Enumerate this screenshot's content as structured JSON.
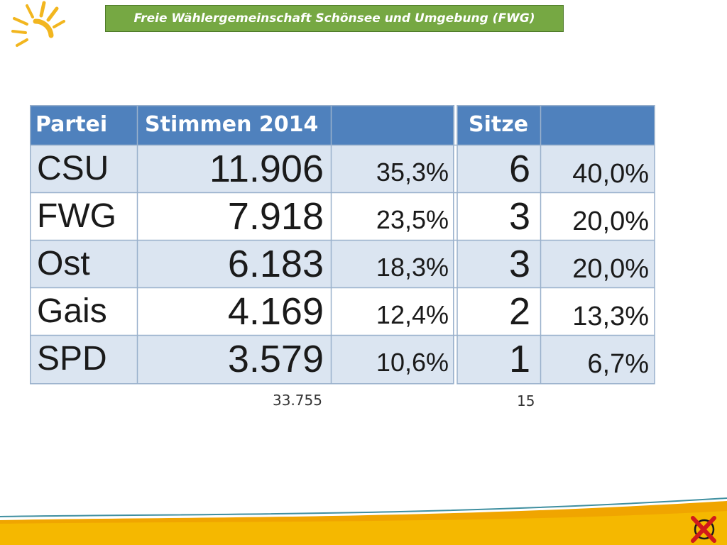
{
  "header": {
    "title": "Freie Wählergemeinschaft Schönsee und Umgebung (FWG)"
  },
  "table": {
    "columns": [
      "Partei",
      "Stimmen 2014",
      "",
      "Sitze",
      ""
    ],
    "rows": [
      {
        "party": "CSU",
        "votes": "11.906",
        "pct": "35,3%",
        "seats": "6",
        "seat_pct": "40,0%"
      },
      {
        "party": "FWG",
        "votes": "7.918",
        "pct": "23,5%",
        "seats": "3",
        "seat_pct": "20,0%"
      },
      {
        "party": "Ost",
        "votes": "6.183",
        "pct": "18,3%",
        "seats": "3",
        "seat_pct": "20,0%"
      },
      {
        "party": "Gais",
        "votes": "4.169",
        "pct": "12,4%",
        "seats": "2",
        "seat_pct": "13,3%"
      },
      {
        "party": "SPD",
        "votes": "3.579",
        "pct": "10,6%",
        "seats": "1",
        "seat_pct": "6,7%"
      }
    ],
    "total_votes": "33.755",
    "total_seats": "15"
  },
  "colors": {
    "header_blue": "#4f81bd",
    "row_light_blue": "#dbe5f1",
    "banner_green": "#76a843",
    "sun_yellow": "#f2b61f",
    "footer_orange": "#f0a500"
  },
  "icons": {
    "logo": "sun-logo-icon",
    "corner": "ballot-cross-icon"
  }
}
